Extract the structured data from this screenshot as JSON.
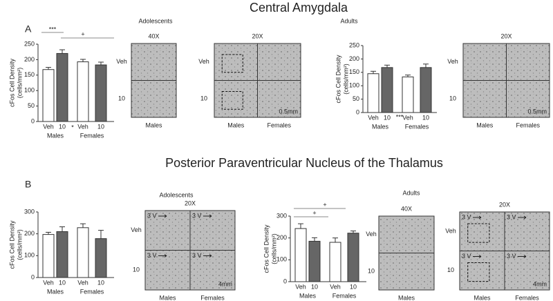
{
  "chart_data": [
    {
      "type": "bar",
      "categories": [
        "Veh",
        "10",
        "Veh",
        "10"
      ],
      "groups": [
        "Males",
        "Females"
      ],
      "values": [
        168,
        220,
        193,
        183
      ],
      "errors": [
        7,
        12,
        8,
        9
      ],
      "colors": [
        "#ffffff",
        "#666666",
        "#ffffff",
        "#666666"
      ],
      "ylabel": "cFos Cell Density",
      "ylabel_unit": "(cells/mm²)",
      "ylim": [
        0,
        250
      ],
      "yticks": [
        0,
        50,
        100,
        150,
        200,
        250
      ],
      "annotations": [
        "***",
        "+",
        "*"
      ]
    },
    {
      "type": "bar",
      "categories": [
        "Veh",
        "10",
        "Veh",
        "10"
      ],
      "groups": [
        "Males",
        "Females"
      ],
      "values": [
        145,
        168,
        133,
        168
      ],
      "errors": [
        9,
        9,
        7,
        13
      ],
      "colors": [
        "#ffffff",
        "#666666",
        "#ffffff",
        "#666666"
      ],
      "ylabel": "cFos Cell Density",
      "ylabel_unit": "(cells/mm²)",
      "ylim": [
        0,
        250
      ],
      "yticks": [
        0,
        50,
        100,
        150,
        200,
        250
      ],
      "annotations": [
        "***"
      ]
    },
    {
      "type": "bar",
      "categories": [
        "Veh",
        "10",
        "Veh",
        "10"
      ],
      "groups": [
        "Males",
        "Females"
      ],
      "values": [
        197,
        210,
        228,
        178
      ],
      "errors": [
        10,
        22,
        18,
        38
      ],
      "colors": [
        "#ffffff",
        "#666666",
        "#ffffff",
        "#666666"
      ],
      "ylabel": "cFos Cell Density",
      "ylabel_unit": "(cells/mm²)",
      "ylim": [
        0,
        300
      ],
      "yticks": [
        0,
        100,
        200,
        300
      ],
      "annotations": []
    },
    {
      "type": "bar",
      "categories": [
        "Veh",
        "10",
        "Veh",
        "10"
      ],
      "groups": [
        "Males",
        "Females"
      ],
      "values": [
        243,
        185,
        180,
        222
      ],
      "errors": [
        22,
        16,
        20,
        10
      ],
      "colors": [
        "#ffffff",
        "#666666",
        "#ffffff",
        "#666666"
      ],
      "ylabel": "cFos Cell Density",
      "ylabel_unit": "(cells/mm²)",
      "ylim": [
        0,
        300
      ],
      "yticks": [
        0,
        100,
        200,
        300
      ],
      "annotations": [
        "+",
        "+"
      ]
    }
  ],
  "figure": {
    "titles": [
      "Central Amygdala",
      "Posterior Paraventricular Nucleus of the Thalamus"
    ],
    "panel_labels": [
      "A",
      "B"
    ],
    "group_headings": [
      "Adolescents",
      "Adults",
      "Adolescents",
      "Adults"
    ],
    "images": [
      {
        "magnification": "40X",
        "rows": [
          "Veh",
          "10"
        ],
        "columns": [
          "Males"
        ]
      },
      {
        "magnification": "20X",
        "rows": [
          "Veh",
          "10"
        ],
        "columns": [
          "Males",
          "Females"
        ],
        "scale": "0.5mm"
      },
      {
        "magnification": "20X",
        "rows": [
          "Veh",
          "10"
        ],
        "columns": [
          "Males",
          "Females"
        ],
        "scale": "0.5mm"
      },
      {
        "magnification": "20X",
        "rows": [
          "Veh",
          "10"
        ],
        "columns": [
          "Males",
          "Females"
        ],
        "scale": "4mm",
        "markers": [
          "3 V",
          "3 V",
          "3 V",
          "3 V"
        ]
      },
      {
        "magnification": "40X",
        "rows": [
          "Veh",
          "10"
        ],
        "columns": [
          "Males"
        ]
      },
      {
        "magnification": "20X",
        "rows": [
          "Veh",
          "10"
        ],
        "columns": [
          "Males",
          "Females"
        ],
        "scale": "4mm",
        "markers": [
          "3 V",
          "3 V",
          "3 V",
          "3 V"
        ]
      }
    ]
  }
}
